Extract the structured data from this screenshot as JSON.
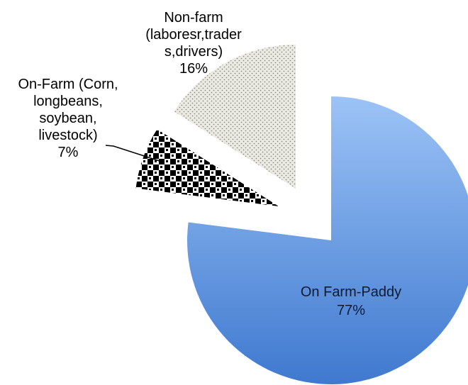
{
  "chart_data": {
    "type": "pie",
    "title": "",
    "exploded": true,
    "legend": "none",
    "slices": [
      {
        "label_lines": [
          "On Farm-Paddy"
        ],
        "value": 77,
        "value_label": "77%",
        "fill": "gradient-blue",
        "colors": [
          "#9cc3f6",
          "#3f79cf"
        ]
      },
      {
        "label_lines": [
          "On-Farm (Corn,",
          "longbeans,",
          "soybean,",
          "livestock)"
        ],
        "value": 7,
        "value_label": "7%",
        "fill": "checkered-pattern",
        "colors": [
          "#000000",
          "#ffffff"
        ]
      },
      {
        "label_lines": [
          "Non-farm",
          "(laboresr,trader",
          "s,drivers)"
        ],
        "value": 16,
        "value_label": "16%",
        "fill": "dotted-pattern",
        "colors": [
          "#ecebe3",
          "#8c8c86"
        ]
      }
    ]
  }
}
